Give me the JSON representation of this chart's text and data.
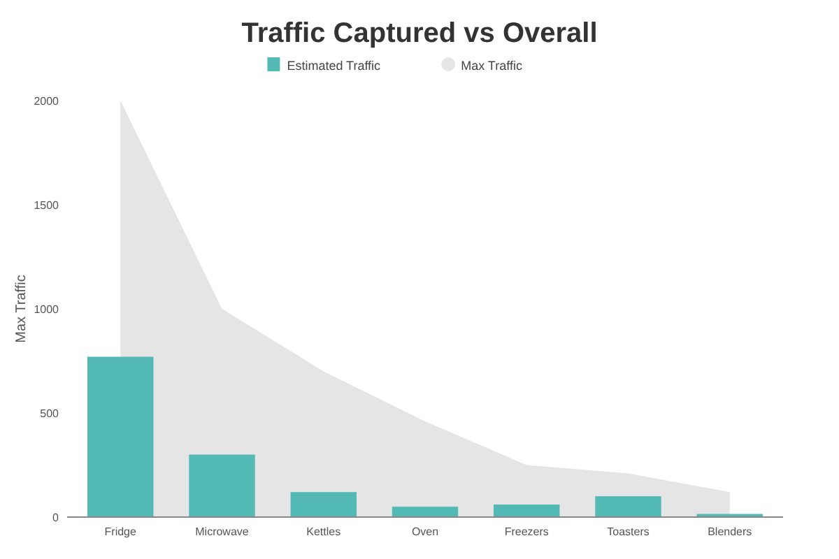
{
  "chart_data": {
    "type": "bar",
    "title": "Traffic Captured vs Overall",
    "ylabel": "Max Traffic",
    "categories": [
      "Fridge",
      "Microwave",
      "Kettles",
      "Oven",
      "Freezers",
      "Toasters",
      "Blenders"
    ],
    "series": [
      {
        "name": "Estimated Traffic",
        "color": "#52b9b5",
        "values": [
          770,
          300,
          120,
          50,
          60,
          100,
          15
        ]
      },
      {
        "name": "Max Traffic",
        "type": "area",
        "color": "#e5e5e5",
        "values": [
          2000,
          1000,
          700,
          460,
          250,
          210,
          120
        ]
      }
    ],
    "ylim": [
      0,
      2000
    ],
    "yticks": [
      0,
      500,
      1000,
      1500,
      2000
    ],
    "legend": "top",
    "grid": false
  }
}
